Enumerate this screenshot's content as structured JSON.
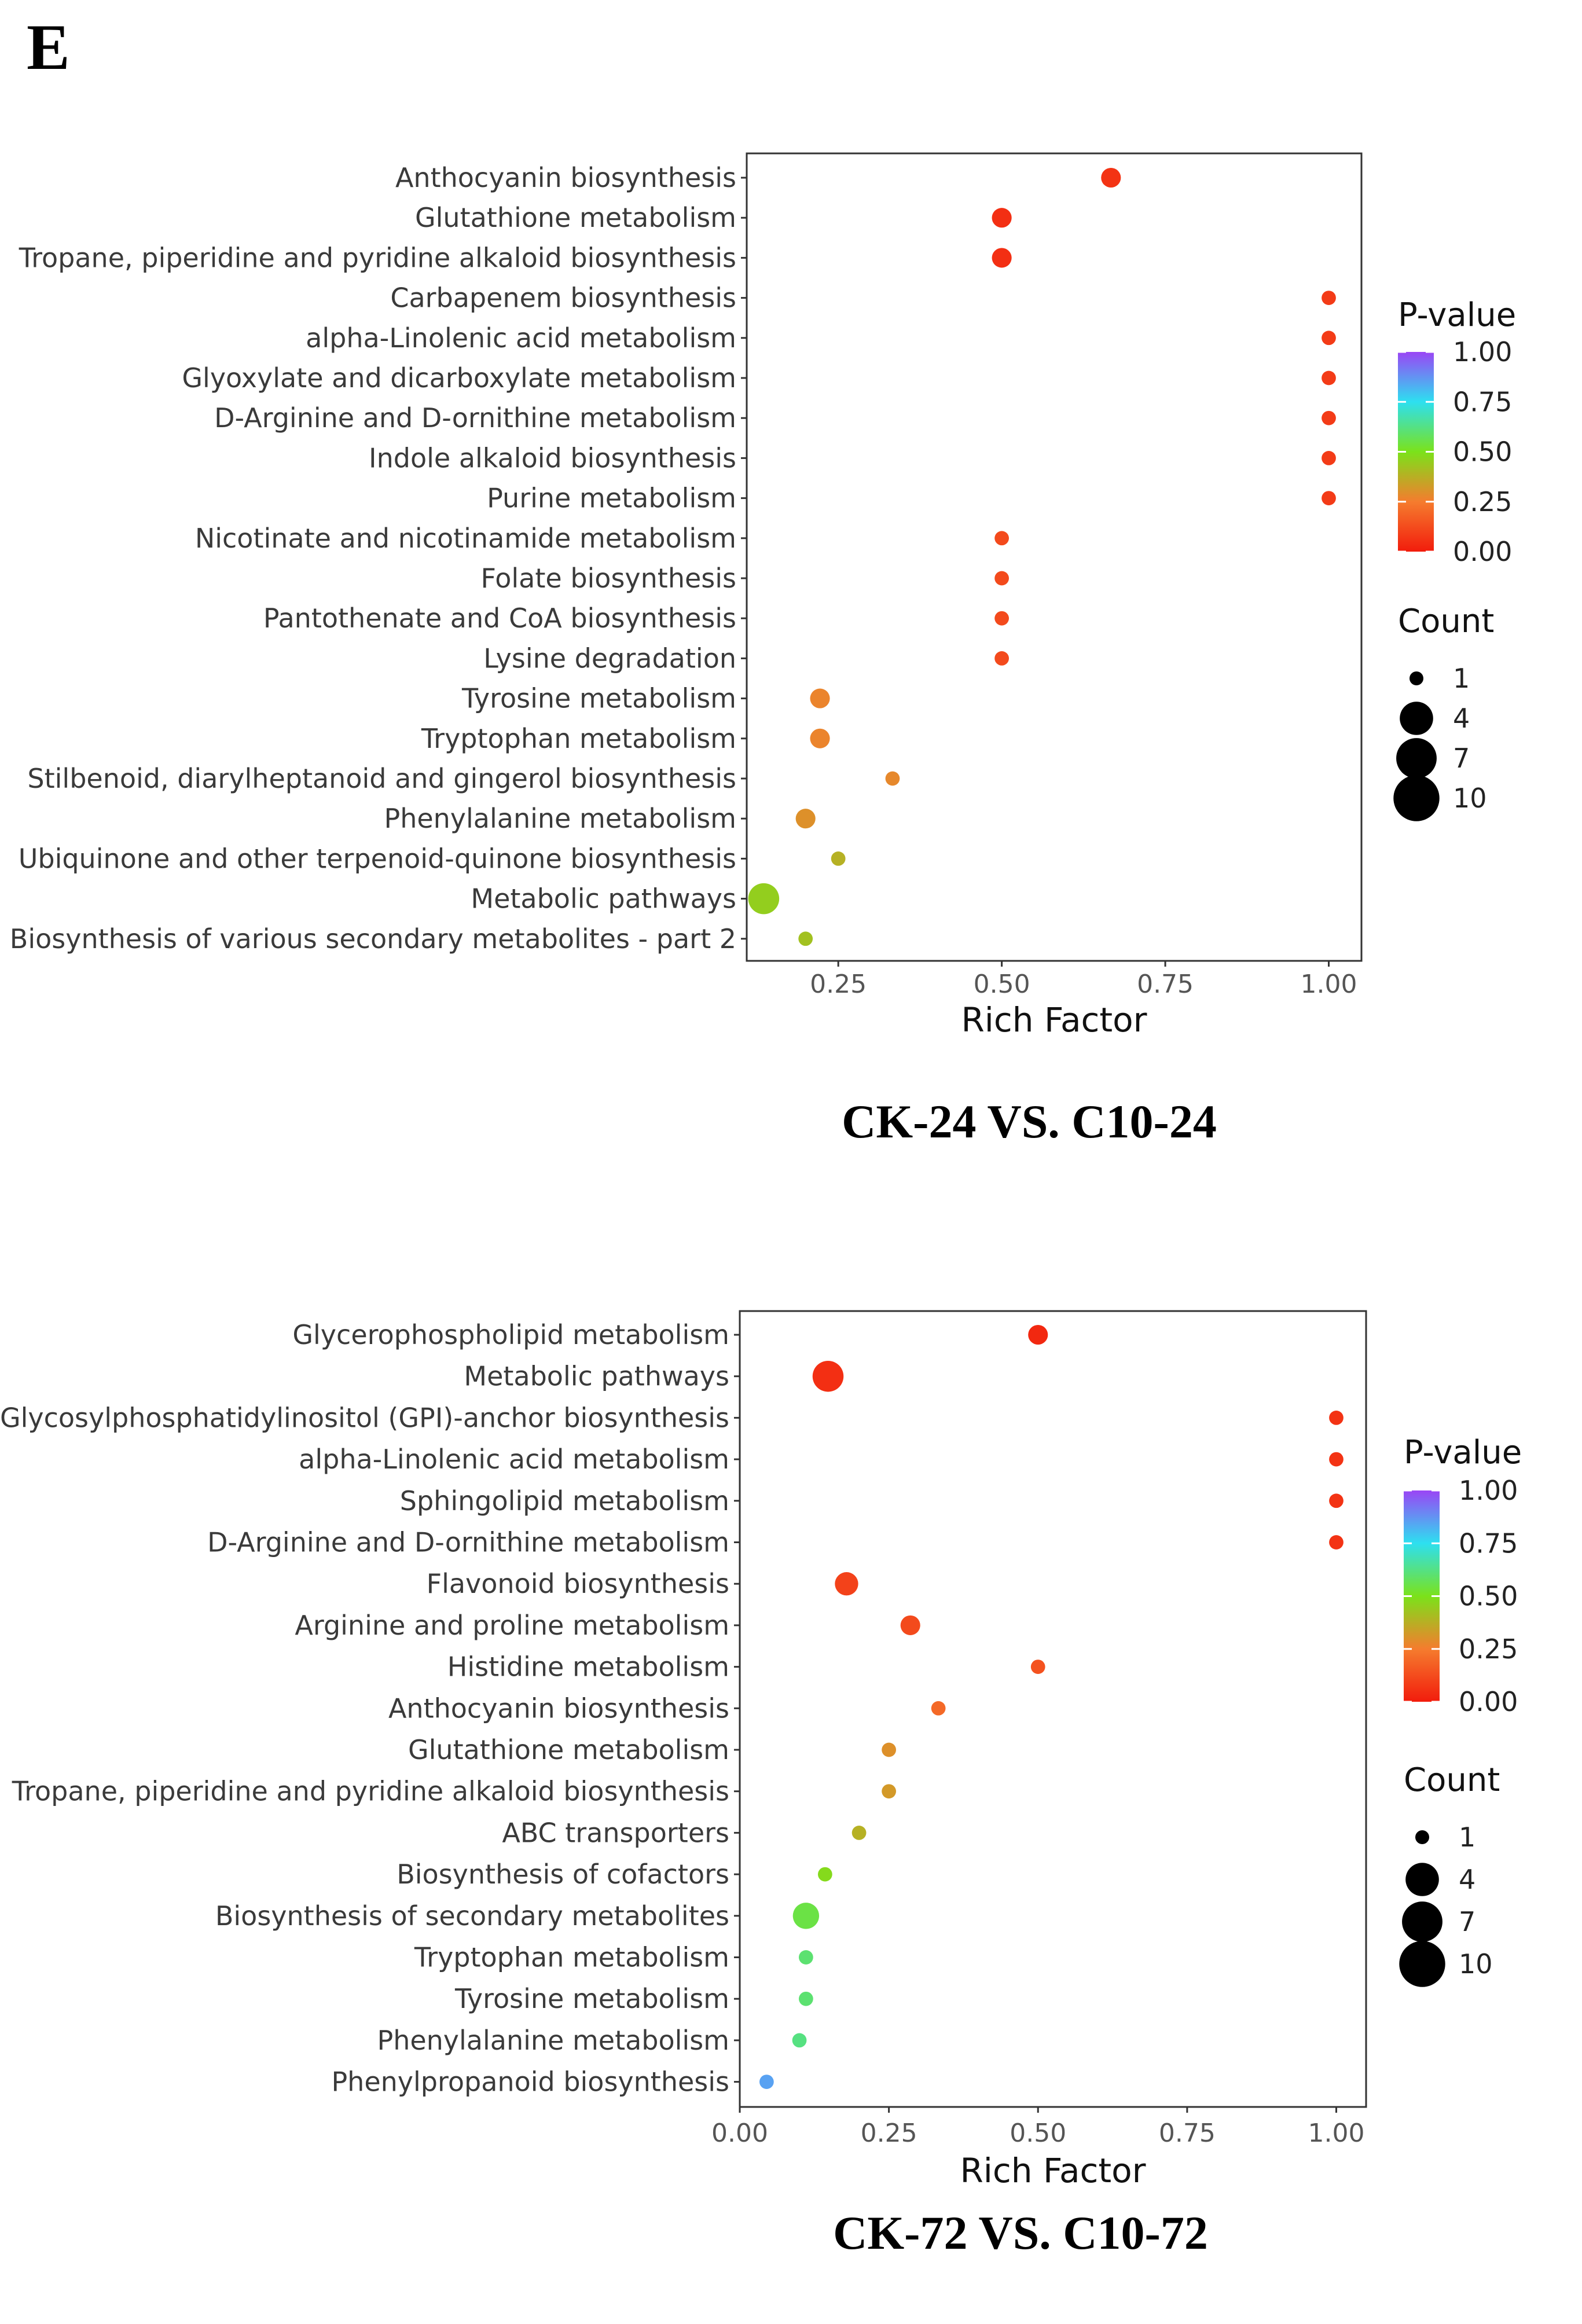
{
  "panel_label": "E",
  "chart_data": [
    {
      "type": "scatter",
      "title": "CK-24 VS. C10-24",
      "xlabel": "Rich Factor",
      "ylabel": "",
      "xlim": [
        0.11,
        1.05
      ],
      "xticks": [
        0.25,
        0.5,
        0.75,
        1.0
      ],
      "xtick_labels": [
        "0.25",
        "0.50",
        "0.75",
        "1.00"
      ],
      "legend": {
        "color_title": "P-value",
        "color_ticks": [
          "1.00",
          "0.75",
          "0.50",
          "0.25",
          "0.00"
        ],
        "size_title": "Count",
        "size_ticks": [
          "1",
          "4",
          "7",
          "10"
        ]
      },
      "categories": [
        "Anthocyanin biosynthesis",
        "Glutathione metabolism",
        "Tropane, piperidine and pyridine alkaloid biosynthesis",
        "Carbapenem biosynthesis",
        "alpha-Linolenic acid metabolism",
        "Glyoxylate and dicarboxylate metabolism",
        "D-Arginine and D-ornithine metabolism",
        "Indole alkaloid biosynthesis",
        "Purine metabolism",
        "Nicotinate and nicotinamide metabolism",
        "Folate biosynthesis",
        "Pantothenate and CoA biosynthesis",
        "Lysine degradation",
        "Tyrosine metabolism",
        "Tryptophan metabolism",
        "Stilbenoid, diarylheptanoid and gingerol biosynthesis",
        "Phenylalanine metabolism",
        "Ubiquinone and other terpenoid-quinone biosynthesis",
        "Metabolic pathways",
        "Biosynthesis of various secondary metabolites - part 2"
      ],
      "rich_factor": [
        0.667,
        0.5,
        0.5,
        1.0,
        1.0,
        1.0,
        1.0,
        1.0,
        1.0,
        0.5,
        0.5,
        0.5,
        0.5,
        0.222,
        0.222,
        0.333,
        0.2,
        0.25,
        0.136,
        0.2
      ],
      "count": [
        2,
        2,
        2,
        1,
        1,
        1,
        1,
        1,
        1,
        1,
        1,
        1,
        1,
        2,
        2,
        1,
        2,
        1,
        6,
        1
      ],
      "p_value": [
        0.06,
        0.05,
        0.05,
        0.08,
        0.08,
        0.08,
        0.08,
        0.08,
        0.08,
        0.12,
        0.12,
        0.12,
        0.12,
        0.27,
        0.27,
        0.28,
        0.3,
        0.38,
        0.45,
        0.42
      ]
    },
    {
      "type": "scatter",
      "title": "CK-72 VS. C10-72",
      "xlabel": "Rich Factor",
      "ylabel": "",
      "xlim": [
        0.0,
        1.05
      ],
      "xticks": [
        0.0,
        0.25,
        0.5,
        0.75,
        1.0
      ],
      "xtick_labels": [
        "0.00",
        "0.25",
        "0.50",
        "0.75",
        "1.00"
      ],
      "legend": {
        "color_title": "P-value",
        "color_ticks": [
          "1.00",
          "0.75",
          "0.50",
          "0.25",
          "0.00"
        ],
        "size_title": "Count",
        "size_ticks": [
          "1",
          "4",
          "7",
          "10"
        ]
      },
      "categories": [
        "Glycerophospholipid metabolism",
        "Metabolic pathways",
        "Glycosylphosphatidylinositol (GPI)-anchor biosynthesis",
        "alpha-Linolenic acid metabolism",
        "Sphingolipid metabolism",
        "D-Arginine and D-ornithine metabolism",
        "Flavonoid biosynthesis",
        "Arginine and proline metabolism",
        "Histidine metabolism",
        "Anthocyanin biosynthesis",
        "Glutathione metabolism",
        "Tropane, piperidine and pyridine alkaloid biosynthesis",
        "ABC transporters",
        "Biosynthesis of cofactors",
        "Biosynthesis of secondary metabolites",
        "Tryptophan metabolism",
        "Tyrosine metabolism",
        "Phenylalanine metabolism",
        "Phenylpropanoid biosynthesis"
      ],
      "rich_factor": [
        0.5,
        0.148,
        1.0,
        1.0,
        1.0,
        1.0,
        0.179,
        0.286,
        0.5,
        0.333,
        0.25,
        0.25,
        0.2,
        0.143,
        0.111,
        0.111,
        0.111,
        0.1,
        0.045
      ],
      "count": [
        2,
        6,
        1,
        1,
        1,
        1,
        3,
        2,
        1,
        1,
        1,
        1,
        1,
        1,
        4,
        1,
        1,
        1,
        1
      ],
      "p_value": [
        0.03,
        0.05,
        0.06,
        0.06,
        0.06,
        0.06,
        0.1,
        0.12,
        0.14,
        0.2,
        0.3,
        0.32,
        0.38,
        0.48,
        0.55,
        0.6,
        0.6,
        0.62,
        0.85
      ]
    }
  ]
}
